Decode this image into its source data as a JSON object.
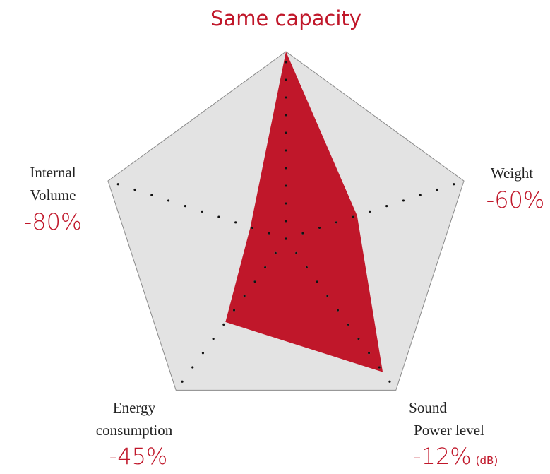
{
  "chart_data": {
    "type": "radar",
    "categories": [
      [
        "Same capacity"
      ],
      [
        "Weight"
      ],
      [
        "Sound",
        "Power level"
      ],
      [
        "Energy",
        "consumption"
      ],
      [
        "Internal",
        "Volume"
      ]
    ],
    "values": [
      0,
      -60,
      -12,
      -45,
      -80
    ],
    "value_labels": [
      null,
      "-60%",
      "-12%",
      "-45%",
      "-80%"
    ],
    "units": [
      null,
      null,
      "(dB)",
      null,
      null
    ],
    "rlim": [
      -100,
      0
    ],
    "color": "#c0172a"
  }
}
